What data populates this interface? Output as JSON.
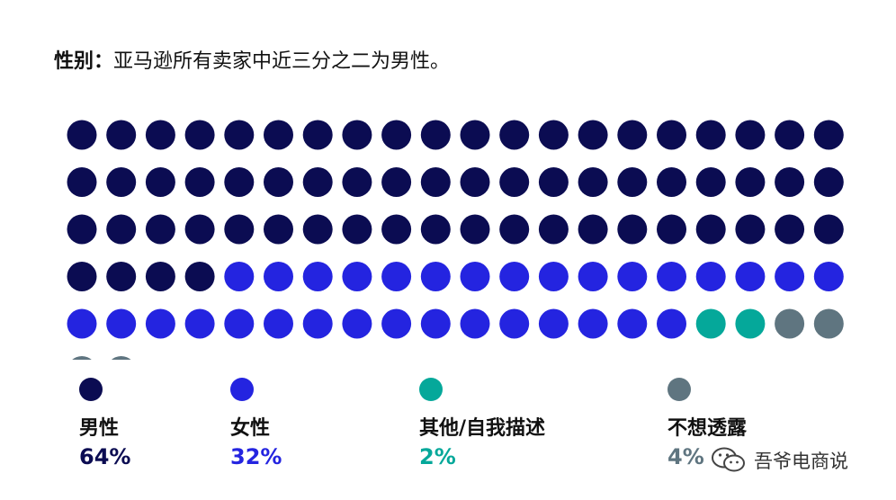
{
  "title": {
    "prefix": "性别：",
    "text": "亚马逊所有卖家中近三分之二为男性。"
  },
  "colors": {
    "male": "#0b0c52",
    "female": "#2424e0",
    "other": "#05a89a",
    "undisclosed": "#5f7580"
  },
  "chart_data": {
    "type": "waffle",
    "rows": 5,
    "cols": 20,
    "series": [
      {
        "name": "男性",
        "value": 64,
        "label": "64%",
        "color": "#0b0c52"
      },
      {
        "name": "女性",
        "value": 32,
        "label": "32%",
        "color": "#2424e0"
      },
      {
        "name": "其他/自我描述",
        "value": 2,
        "label": "2%",
        "color": "#05a89a"
      },
      {
        "name": "不想透露",
        "value": 4,
        "label": "4%",
        "color": "#5f7580"
      }
    ]
  },
  "watermark": {
    "icon": "wechat-icon",
    "text": "吾爷电商说"
  }
}
